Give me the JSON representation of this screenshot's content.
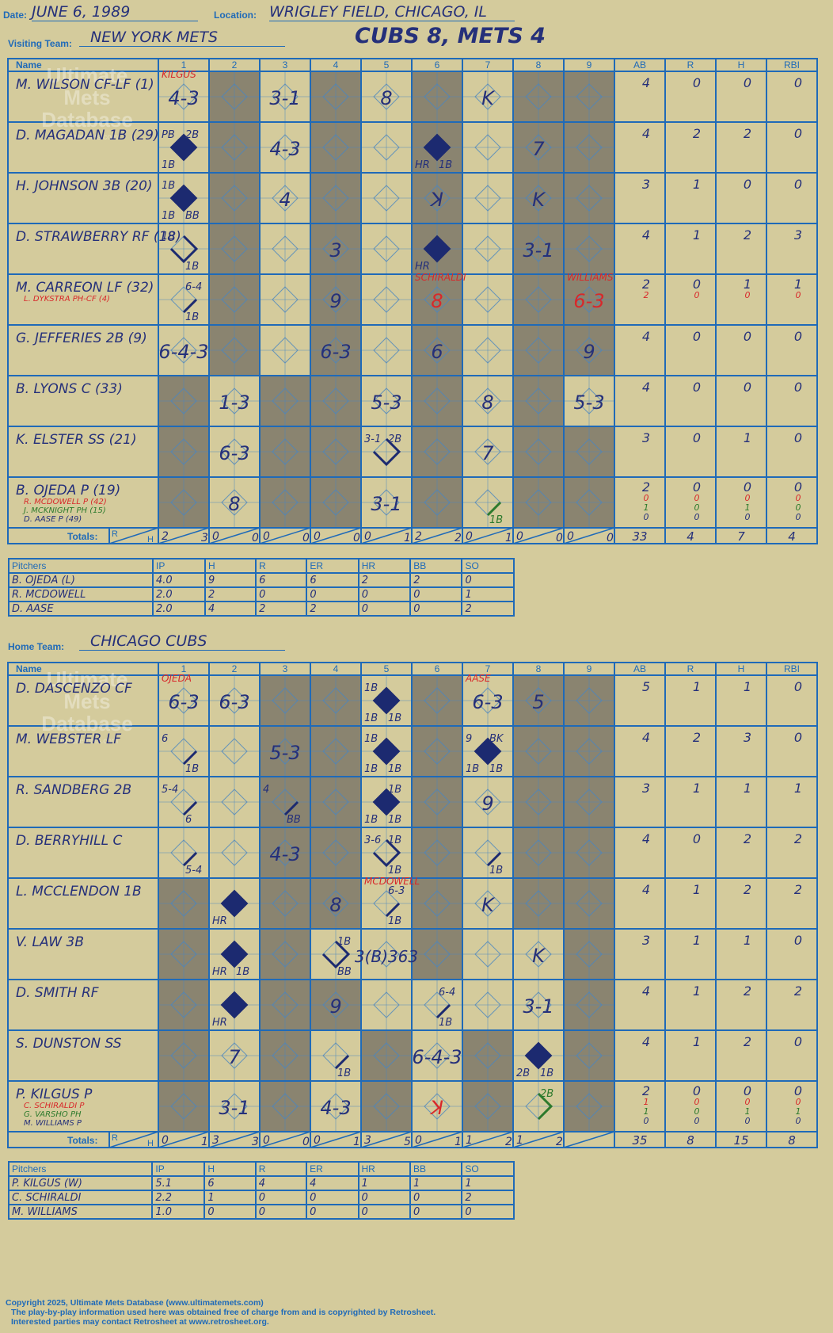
{
  "header": {
    "date_label": "Date:",
    "date": "JUNE 6, 1989",
    "location_label": "Location:",
    "location": "WRIGLEY FIELD, CHICAGO, IL",
    "visiting_label": "Visiting Team:",
    "visiting_team": "NEW YORK METS",
    "result": "CUBS 8, METS 4",
    "home_label": "Home Team:",
    "home_team": "CHICAGO CUBS"
  },
  "grid_headers": {
    "name": "Name",
    "innings": [
      "1",
      "2",
      "3",
      "4",
      "5",
      "6",
      "7",
      "8",
      "9"
    ],
    "stats": [
      "AB",
      "R",
      "H",
      "RBI"
    ],
    "totals": "Totals:",
    "r": "R",
    "h": "H"
  },
  "watermark": {
    "line1": "Ultimate",
    "line2": "Mets",
    "line3": "Database",
    "url": "ultimatemets.com"
  },
  "visitors": {
    "shade": [
      0,
      1,
      0,
      1,
      0,
      1,
      0,
      1,
      1
    ],
    "shade_rows": {
      "6": [
        1,
        0,
        1,
        1,
        0,
        1,
        0,
        1,
        0
      ],
      "7": [
        1,
        0,
        1,
        1,
        0,
        1,
        0,
        1,
        1
      ],
      "8": [
        1,
        0,
        1,
        1,
        0,
        1,
        0,
        1,
        1
      ]
    },
    "batters": [
      {
        "name": "M. WILSON CF-LF (1)",
        "subs": [],
        "stats": [
          [
            "4",
            "0",
            "0",
            "0"
          ]
        ],
        "cells": [
          {
            "i": 0,
            "t": "4-3",
            "pit": "KILGUS"
          },
          {
            "i": 2,
            "t": "3-1"
          },
          {
            "i": 4,
            "t": "8"
          },
          {
            "i": 6,
            "t": "K"
          }
        ]
      },
      {
        "name": "D. MAGADAN 1B (29)",
        "subs": [],
        "stats": [
          [
            "4",
            "2",
            "2",
            "0"
          ]
        ],
        "cells": [
          {
            "i": 0,
            "dia": "full",
            "tl": "PB",
            "tr": "2B",
            "bl": "1B"
          },
          {
            "i": 2,
            "t": "4-3"
          },
          {
            "i": 5,
            "dia": "full",
            "bl": "HR",
            "br": "1B"
          },
          {
            "i": 7,
            "t": "7"
          }
        ]
      },
      {
        "name": "H. JOHNSON 3B (20)",
        "subs": [],
        "stats": [
          [
            "3",
            "1",
            "0",
            "0"
          ]
        ],
        "cells": [
          {
            "i": 0,
            "dia": "full",
            "tl": "1B",
            "bl": "1B",
            "br": "BB"
          },
          {
            "i": 2,
            "t": "4"
          },
          {
            "i": 5,
            "t": "ꓘ"
          },
          {
            "i": 7,
            "t": "K"
          }
        ]
      },
      {
        "name": "D. STRAWBERRY RF (18)",
        "subs": [],
        "stats": [
          [
            "4",
            "1",
            "2",
            "3"
          ]
        ],
        "cells": [
          {
            "i": 0,
            "dia": "half",
            "tl": "1B",
            "br": "1B"
          },
          {
            "i": 3,
            "t": "3"
          },
          {
            "i": 5,
            "dia": "full",
            "bl": "HR"
          },
          {
            "i": 7,
            "t": "3-1"
          }
        ]
      },
      {
        "name": "M. CARREON LF (32)",
        "subs": [
          {
            "n": "L. DYKSTRA PH-CF (4)",
            "c": "red"
          }
        ],
        "stats": [
          [
            "2",
            "0",
            "1",
            "1"
          ],
          [
            "2",
            "0",
            "0",
            "0"
          ]
        ],
        "cells": [
          {
            "i": 0,
            "dia": "slash",
            "tr": "6-4",
            "br": "1B"
          },
          {
            "i": 3,
            "t": "9"
          },
          {
            "i": 5,
            "t": "8",
            "red": true,
            "pit": "SCHIRALDI"
          },
          {
            "i": 8,
            "t": "6-3",
            "red": true,
            "pit": "WILLIAMS"
          }
        ]
      },
      {
        "name": "G. JEFFERIES 2B (9)",
        "subs": [],
        "stats": [
          [
            "4",
            "0",
            "0",
            "0"
          ]
        ],
        "cells": [
          {
            "i": 0,
            "t": "6-4-3"
          },
          {
            "i": 3,
            "t": "6-3"
          },
          {
            "i": 5,
            "t": "6"
          },
          {
            "i": 8,
            "t": "9"
          }
        ]
      },
      {
        "name": "B. LYONS C (33)",
        "subs": [],
        "stats": [
          [
            "4",
            "0",
            "0",
            "0"
          ]
        ],
        "cells": [
          {
            "i": 1,
            "t": "1-3"
          },
          {
            "i": 4,
            "t": "5-3"
          },
          {
            "i": 6,
            "t": "8"
          },
          {
            "i": 8,
            "t": "5-3"
          }
        ]
      },
      {
        "name": "K. ELSTER SS (21)",
        "subs": [],
        "stats": [
          [
            "3",
            "0",
            "1",
            "0"
          ]
        ],
        "cells": [
          {
            "i": 1,
            "t": "6-3"
          },
          {
            "i": 4,
            "dia": "half",
            "tl": "3-1",
            "tr": "2B"
          },
          {
            "i": 6,
            "t": "7"
          }
        ]
      },
      {
        "name": "B. OJEDA P (19)",
        "subs": [
          {
            "n": "R. MCDOWELL P (42)",
            "c": "red"
          },
          {
            "n": "J. MCKNIGHT PH (15)",
            "c": "green"
          },
          {
            "n": "D. AASE P (49)",
            "c": "blue"
          }
        ],
        "stats": [
          [
            "2",
            "0",
            "0",
            "0"
          ],
          [
            "0",
            "0",
            "0",
            "0"
          ],
          [
            "1",
            "0",
            "1",
            "0"
          ],
          [
            "0",
            "0",
            "0",
            "0"
          ]
        ],
        "cells": [
          {
            "i": 1,
            "t": "8"
          },
          {
            "i": 4,
            "t": "3-1"
          },
          {
            "i": 6,
            "dia": "green",
            "br": "1B"
          }
        ]
      }
    ],
    "totals": [
      [
        "2",
        "3"
      ],
      [
        "0",
        "0"
      ],
      [
        "0",
        "0"
      ],
      [
        "0",
        "0"
      ],
      [
        "0",
        "1"
      ],
      [
        "2",
        "2"
      ],
      [
        "0",
        "1"
      ],
      [
        "0",
        "0"
      ],
      [
        "0",
        "0"
      ]
    ],
    "totals_stats": [
      "33",
      "4",
      "7",
      "4"
    ],
    "pitchers_header": [
      "Pitchers",
      "IP",
      "H",
      "R",
      "ER",
      "HR",
      "BB",
      "SO"
    ],
    "pitchers": [
      [
        "B. OJEDA (L)",
        "4.0",
        "9",
        "6",
        "6",
        "2",
        "2",
        "0"
      ],
      [
        "R. MCDOWELL",
        "2.0",
        "2",
        "0",
        "0",
        "0",
        "0",
        "1"
      ],
      [
        "D. AASE",
        "2.0",
        "4",
        "2",
        "2",
        "0",
        "0",
        "2"
      ]
    ]
  },
  "home": {
    "shade": [
      0,
      0,
      1,
      1,
      0,
      1,
      0,
      1,
      1
    ],
    "shade_rows": {
      "4": [
        1,
        0,
        1,
        1,
        0,
        1,
        0,
        1,
        1
      ],
      "5": [
        1,
        0,
        1,
        0,
        0,
        1,
        0,
        0,
        1
      ],
      "6": [
        1,
        0,
        1,
        1,
        0,
        0,
        0,
        0,
        1
      ],
      "7": [
        1,
        0,
        1,
        0,
        1,
        0,
        1,
        0,
        1
      ],
      "8": [
        1,
        0,
        1,
        0,
        1,
        0,
        1,
        0,
        1
      ]
    },
    "batters": [
      {
        "name": "D. DASCENZO CF",
        "subs": [],
        "stats": [
          [
            "5",
            "1",
            "1",
            "0"
          ]
        ],
        "cells": [
          {
            "i": 0,
            "t": "6-3",
            "pit": "OJEDA"
          },
          {
            "i": 1,
            "t": "6-3"
          },
          {
            "i": 4,
            "dia": "full",
            "tl": "1B",
            "bl": "1B",
            "br": "1B"
          },
          {
            "i": 6,
            "t": "6-3",
            "pit": "AASE"
          },
          {
            "i": 7,
            "t": "5"
          }
        ]
      },
      {
        "name": "M. WEBSTER LF",
        "subs": [],
        "stats": [
          [
            "4",
            "2",
            "3",
            "0"
          ]
        ],
        "cells": [
          {
            "i": 0,
            "dia": "slash",
            "tl": "6",
            "br": "1B"
          },
          {
            "i": 2,
            "t": "5-3"
          },
          {
            "i": 4,
            "dia": "full",
            "tl": "1B",
            "bl": "1B",
            "br": "1B"
          },
          {
            "i": 6,
            "dia": "full",
            "tl": "9",
            "tr": "BK",
            "bl": "1B",
            "br": "1B"
          }
        ]
      },
      {
        "name": "R. SANDBERG 2B",
        "subs": [],
        "stats": [
          [
            "3",
            "1",
            "1",
            "1"
          ]
        ],
        "cells": [
          {
            "i": 0,
            "dia": "slash",
            "tl": "5-4",
            "br": "6"
          },
          {
            "i": 2,
            "dia": "slash",
            "tl": "4",
            "br": "BB"
          },
          {
            "i": 4,
            "dia": "full",
            "tr": "1B",
            "bl": "1B",
            "br": "1B"
          },
          {
            "i": 6,
            "t": "9"
          }
        ]
      },
      {
        "name": "D. BERRYHILL C",
        "subs": [],
        "stats": [
          [
            "4",
            "0",
            "2",
            "2"
          ]
        ],
        "cells": [
          {
            "i": 0,
            "dia": "slash",
            "br": "5-4"
          },
          {
            "i": 2,
            "t": "4-3"
          },
          {
            "i": 4,
            "dia": "half",
            "tl": "3-6",
            "tr": "1B",
            "br": "1B"
          },
          {
            "i": 6,
            "dia": "slash",
            "br": "1B"
          }
        ]
      },
      {
        "name": "L. MCCLENDON 1B",
        "subs": [],
        "stats": [
          [
            "4",
            "1",
            "2",
            "2"
          ]
        ],
        "cells": [
          {
            "i": 1,
            "dia": "full",
            "bl": "HR"
          },
          {
            "i": 3,
            "t": "8"
          },
          {
            "i": 4,
            "dia": "slash",
            "tr": "6-3",
            "br": "1B",
            "pit": "MCDOWELL"
          },
          {
            "i": 6,
            "t": "K"
          }
        ]
      },
      {
        "name": "V. LAW 3B",
        "subs": [],
        "stats": [
          [
            "3",
            "1",
            "1",
            "0"
          ]
        ],
        "cells": [
          {
            "i": 1,
            "dia": "full",
            "bl": "HR",
            "br": "1B"
          },
          {
            "i": 3,
            "dia": "half",
            "tr": "1B",
            "br": "BB"
          },
          {
            "i": 4,
            "t": "3(B)363"
          },
          {
            "i": 7,
            "t": "K"
          }
        ]
      },
      {
        "name": "D. SMITH RF",
        "subs": [],
        "stats": [
          [
            "4",
            "1",
            "2",
            "2"
          ]
        ],
        "cells": [
          {
            "i": 1,
            "dia": "full",
            "bl": "HR"
          },
          {
            "i": 3,
            "t": "9"
          },
          {
            "i": 5,
            "dia": "slash",
            "tr": "6-4",
            "br": "1B"
          },
          {
            "i": 7,
            "t": "3-1"
          }
        ]
      },
      {
        "name": "S. DUNSTON SS",
        "subs": [],
        "stats": [
          [
            "4",
            "1",
            "2",
            "0"
          ]
        ],
        "cells": [
          {
            "i": 1,
            "t": "7"
          },
          {
            "i": 3,
            "dia": "slash",
            "br": "1B"
          },
          {
            "i": 5,
            "t": "6-4-3"
          },
          {
            "i": 7,
            "dia": "full",
            "bl": "2B",
            "br": "1B"
          }
        ]
      },
      {
        "name": "P. KILGUS P",
        "subs": [
          {
            "n": "C. SCHIRALDI P",
            "c": "red"
          },
          {
            "n": "G. VARSHO PH",
            "c": "green"
          },
          {
            "n": "M. WILLIAMS P",
            "c": "blue"
          }
        ],
        "stats": [
          [
            "2",
            "0",
            "0",
            "0"
          ],
          [
            "1",
            "0",
            "0",
            "0"
          ],
          [
            "1",
            "0",
            "1",
            "1"
          ],
          [
            "0",
            "0",
            "0",
            "0"
          ]
        ],
        "cells": [
          {
            "i": 1,
            "t": "3-1"
          },
          {
            "i": 3,
            "t": "4-3"
          },
          {
            "i": 5,
            "t": "ꓘ",
            "red": true
          },
          {
            "i": 7,
            "dia": "greenhalf",
            "tr": "2B"
          }
        ]
      }
    ],
    "totals": [
      [
        "0",
        "1"
      ],
      [
        "3",
        "3"
      ],
      [
        "0",
        "0"
      ],
      [
        "0",
        "1"
      ],
      [
        "3",
        "5"
      ],
      [
        "0",
        "1"
      ],
      [
        "1",
        "2"
      ],
      [
        "1",
        "2"
      ],
      [
        "",
        ""
      ]
    ],
    "totals_stats": [
      "35",
      "8",
      "15",
      "8"
    ],
    "pitchers_header": [
      "Pitchers",
      "IP",
      "H",
      "R",
      "ER",
      "HR",
      "BB",
      "SO"
    ],
    "pitchers": [
      [
        "P. KILGUS (W)",
        "5.1",
        "6",
        "4",
        "4",
        "1",
        "1",
        "1"
      ],
      [
        "C. SCHIRALDI",
        "2.2",
        "1",
        "0",
        "0",
        "0",
        "0",
        "2"
      ],
      [
        "M. WILLIAMS",
        "1.0",
        "0",
        "0",
        "0",
        "0",
        "0",
        "0"
      ]
    ]
  },
  "footer": {
    "line1": "Copyright 2025, Ultimate Mets Database (www.ultimatemets.com)",
    "line2": "The play-by-play information used here was obtained free of charge from and is copyrighted by Retrosheet.",
    "line3": "Interested parties may contact Retrosheet at www.retrosheet.org."
  },
  "colors": {
    "ink": "#25307a",
    "grid": "#1f6ab8",
    "shade": "#8a8470",
    "paper": "#d4cb9c",
    "red": "#d8282a",
    "green": "#2d7a2d",
    "diamond": "#1c2a70"
  }
}
